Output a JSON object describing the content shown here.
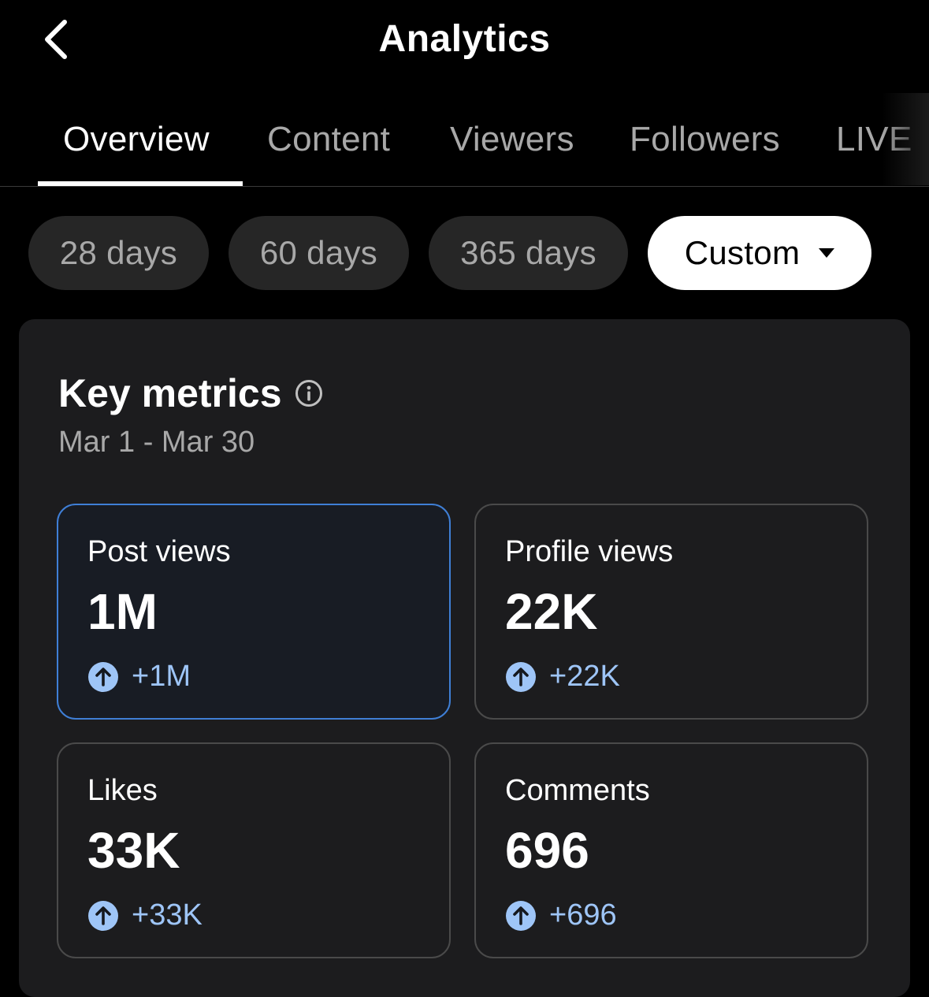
{
  "header": {
    "title": "Analytics",
    "back_icon": "chevron-left-icon"
  },
  "tabs": [
    {
      "label": "Overview",
      "active": true
    },
    {
      "label": "Content",
      "active": false
    },
    {
      "label": "Viewers",
      "active": false
    },
    {
      "label": "Followers",
      "active": false
    },
    {
      "label": "LIVE",
      "active": false
    }
  ],
  "filters": [
    {
      "label": "28 days",
      "selected": false
    },
    {
      "label": "60 days",
      "selected": false
    },
    {
      "label": "365 days",
      "selected": false
    },
    {
      "label": "Custom",
      "selected": true,
      "icon": "caret-down-icon"
    }
  ],
  "key_metrics": {
    "title": "Key metrics",
    "info_icon": "info-icon",
    "date_range": "Mar 1 - Mar 30",
    "items": [
      {
        "label": "Post views",
        "value": "1M",
        "change": "+1M",
        "trend": "up",
        "selected": true
      },
      {
        "label": "Profile views",
        "value": "22K",
        "change": "+22K",
        "trend": "up",
        "selected": false
      },
      {
        "label": "Likes",
        "value": "33K",
        "change": "+33K",
        "trend": "up",
        "selected": false
      },
      {
        "label": "Comments",
        "value": "696",
        "change": "+696",
        "trend": "up",
        "selected": false
      }
    ]
  },
  "colors": {
    "background": "#000000",
    "card": "#1c1c1e",
    "accent": "#3f7fd6",
    "trend_up": "#9ec5f7",
    "muted_text": "#a8a8a8"
  }
}
